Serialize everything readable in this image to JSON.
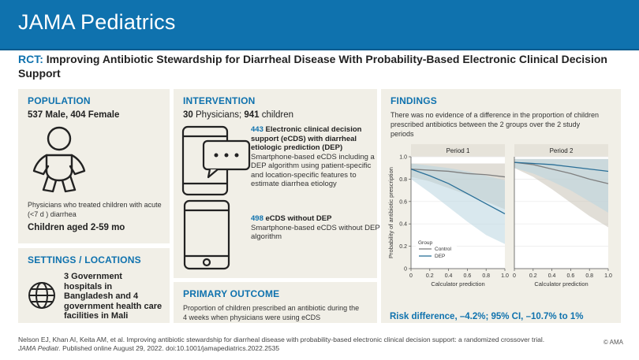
{
  "header": {
    "brand": "JAMA Pediatrics"
  },
  "title": {
    "tag": "RCT:",
    "text": "Improving Antibiotic Stewardship for Diarrheal Disease With Probability-Based Electronic Clinical Decision Support"
  },
  "population": {
    "heading": "POPULATION",
    "count": "537 Male, 404 Female",
    "description": "Physicians who treated children with acute (<7 d ) diarrhea",
    "age": "Children aged 2-59 mo",
    "icon": "baby-icon"
  },
  "settings": {
    "heading": "SETTINGS / LOCATIONS",
    "text": "3 Government hospitals in Bangladesh and 4 government health care facilities in Mali",
    "icon": "globe-icon"
  },
  "intervention": {
    "heading": "INTERVENTION",
    "physicians": "30",
    "physicians_label": "Physicians;",
    "children": "941",
    "children_label": "children",
    "arm1": {
      "number": "443",
      "title": "Electronic clinical decision support (eCDS) with diarrheal etiologic prediction (DEP)",
      "description": "Smartphone-based eCDS including a DEP algorithm using patient-specific and location-specific features to estimate diarrhea etiology"
    },
    "arm2": {
      "number": "498",
      "title": "eCDS without DEP",
      "description": "Smartphone-based eCDS without DEP algorithm"
    }
  },
  "primary_outcome": {
    "heading": "PRIMARY OUTCOME",
    "text": "Proportion of children prescribed an antibiotic during the 4 weeks when physicians were using eCDS"
  },
  "findings": {
    "heading": "FINDINGS",
    "text": "There was no evidence of a difference in the proportion of children prescribed antibiotics between the 2 groups over the 2 study periods",
    "risk": "Risk difference, –4.2%; 95% CI, –10.7% to 1%"
  },
  "chart_data": {
    "type": "line",
    "ylabel": "Probability of antibiotic prescription",
    "xlabel": "Calculator prediction",
    "xlim": [
      0,
      1
    ],
    "ylim": [
      0,
      1
    ],
    "xticks": [
      "0",
      "0.2",
      "0.4",
      "0.6",
      "0.8",
      "1.0"
    ],
    "yticks": [
      "0",
      "0.2",
      "0.4",
      "0.6",
      "0.8",
      "1.0"
    ],
    "legend": {
      "title": "Group",
      "placement": "bottom-left",
      "entries": [
        "Control",
        "DEP"
      ]
    },
    "colors": {
      "control": "#7f7f7f",
      "dep": "#2a6f97",
      "control_band": "#c8c2b6",
      "dep_band": "#b9d6e0"
    },
    "panels": [
      {
        "title": "Period 1",
        "x": [
          0,
          0.2,
          0.4,
          0.6,
          0.8,
          1.0
        ],
        "series": [
          {
            "name": "Control",
            "values": [
              0.89,
              0.88,
              0.87,
              0.85,
              0.84,
              0.82
            ],
            "lower": [
              0.82,
              0.78,
              0.72,
              0.66,
              0.6,
              0.53
            ],
            "upper": [
              0.94,
              0.94,
              0.94,
              0.94,
              0.94,
              0.94
            ]
          },
          {
            "name": "DEP",
            "values": [
              0.89,
              0.83,
              0.76,
              0.67,
              0.58,
              0.49
            ],
            "lower": [
              0.8,
              0.68,
              0.55,
              0.42,
              0.3,
              0.22
            ],
            "upper": [
              0.94,
              0.92,
              0.9,
              0.87,
              0.83,
              0.79
            ]
          }
        ]
      },
      {
        "title": "Period 2",
        "x": [
          0,
          0.2,
          0.4,
          0.6,
          0.8,
          1.0
        ],
        "series": [
          {
            "name": "Control",
            "values": [
              0.95,
              0.93,
              0.89,
              0.85,
              0.8,
              0.76
            ],
            "lower": [
              0.9,
              0.82,
              0.71,
              0.59,
              0.47,
              0.37
            ],
            "upper": [
              0.98,
              0.98,
              0.98,
              0.98,
              0.98,
              0.98
            ]
          },
          {
            "name": "DEP",
            "values": [
              0.95,
              0.94,
              0.93,
              0.91,
              0.89,
              0.87
            ],
            "lower": [
              0.9,
              0.85,
              0.78,
              0.7,
              0.6,
              0.5
            ],
            "upper": [
              0.98,
              0.98,
              0.98,
              0.98,
              0.98,
              0.98
            ]
          }
        ]
      }
    ]
  },
  "citation": {
    "text": "Nelson EJ, Khan AI, Keita AM, et al. Improving antibiotic stewardship for diarrheal disease with probability-based electronic clinical decision support: a randomized crossover trial.",
    "journal": "JAMA Pediatr.",
    "published": "Published online August 29, 2022. doi:10.1001/jamapediatrics.2022.2535",
    "copyright": "© AMA"
  }
}
